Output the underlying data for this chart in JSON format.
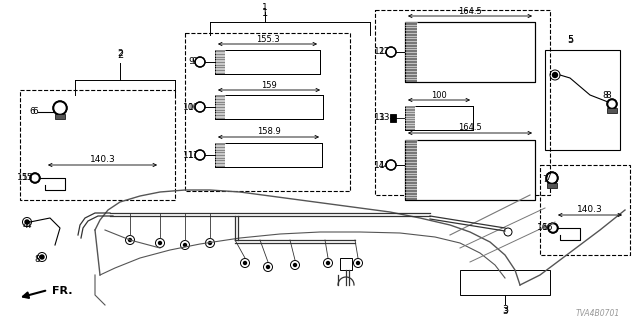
{
  "bg_color": "#ffffff",
  "part_number": "TVA4B0701",
  "fig_w": 6.4,
  "fig_h": 3.2,
  "dpi": 100
}
